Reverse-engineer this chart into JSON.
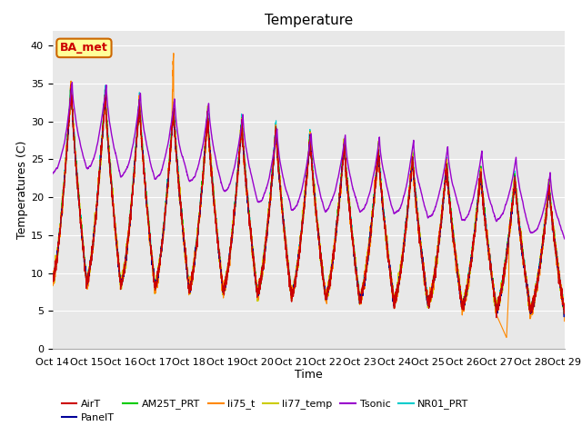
{
  "title": "Temperature",
  "xlabel": "Time",
  "ylabel": "Temperatures (C)",
  "ylim": [
    0,
    42
  ],
  "yticks": [
    0,
    5,
    10,
    15,
    20,
    25,
    30,
    35,
    40
  ],
  "num_days": 15,
  "xtick_labels": [
    "Oct 14",
    "Oct 15",
    "Oct 16",
    "Oct 17",
    "Oct 18",
    "Oct 19",
    "Oct 20",
    "Oct 21",
    "Oct 22",
    "Oct 23",
    "Oct 24",
    "Oct 25",
    "Oct 26",
    "Oct 27",
    "Oct 28",
    "Oct 29"
  ],
  "series_colors": {
    "AirT": "#cc0000",
    "PanelT": "#000099",
    "AM25T_PRT": "#00cc00",
    "li75_t": "#ff8800",
    "li77_temp": "#cccc00",
    "Tsonic": "#9900cc",
    "NR01_PRT": "#00cccc"
  },
  "legend_label": "BA_met",
  "legend_box_color": "#ffff99",
  "legend_box_edge": "#cc6600",
  "legend_text_color": "#cc0000",
  "bg_color": "#e8e8e8",
  "fig_color": "#ffffff",
  "grid_color": "#ffffff",
  "title_fontsize": 11,
  "axis_label_fontsize": 9,
  "tick_fontsize": 8,
  "legend_fontsize": 8
}
